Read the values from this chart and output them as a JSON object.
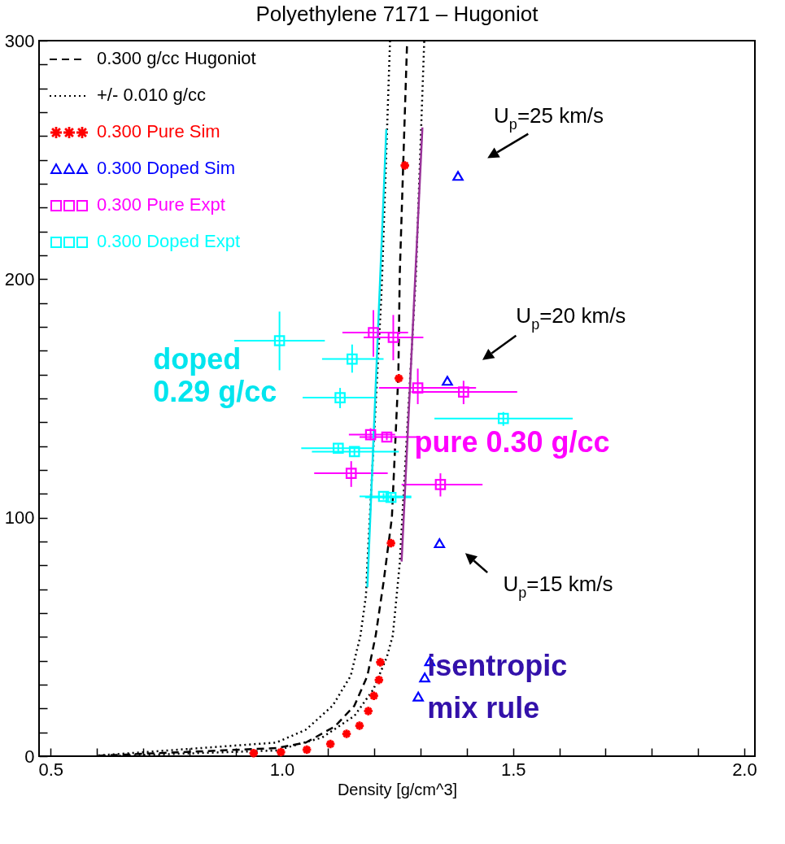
{
  "chart_data": {
    "type": "scatter",
    "title": "Polyethylene 7171 – Hugoniot",
    "xlabel": "Density [g/cm^3]",
    "xlim": [
      0.475,
      2.023
    ],
    "ylim": [
      0,
      300
    ],
    "xticks": [
      0.5,
      {
        "value": 0.6,
        "label": null
      },
      {
        "value": 0.7,
        "label": null
      },
      {
        "value": 0.8,
        "label": null
      },
      {
        "value": 0.9,
        "label": null
      },
      {
        "value": 1.0,
        "label": "1.0"
      },
      {
        "value": 1.1,
        "label": null
      },
      {
        "value": 1.2,
        "label": null
      },
      {
        "value": 1.3,
        "label": null
      },
      {
        "value": 1.4,
        "label": null
      },
      1.5,
      {
        "value": 1.6,
        "label": null
      },
      {
        "value": 1.7,
        "label": null
      },
      {
        "value": 1.8,
        "label": null
      },
      {
        "value": 1.9,
        "label": null
      },
      {
        "value": 2.0,
        "label": "2.0"
      }
    ],
    "yticks": [
      0,
      {
        "value": 10,
        "label": null
      },
      {
        "value": 20,
        "label": null
      },
      {
        "value": 30,
        "label": null
      },
      {
        "value": 40,
        "label": null
      },
      {
        "value": 50,
        "label": null
      },
      {
        "value": 60,
        "label": null
      },
      {
        "value": 70,
        "label": null
      },
      {
        "value": 80,
        "label": null
      },
      {
        "value": 90,
        "label": null
      },
      100,
      {
        "value": 110,
        "label": null
      },
      {
        "value": 120,
        "label": null
      },
      {
        "value": 130,
        "label": null
      },
      {
        "value": 140,
        "label": null
      },
      {
        "value": 150,
        "label": null
      },
      {
        "value": 160,
        "label": null
      },
      {
        "value": 170,
        "label": null
      },
      {
        "value": 180,
        "label": null
      },
      {
        "value": 190,
        "label": null
      },
      200,
      {
        "value": 210,
        "label": null
      },
      {
        "value": 220,
        "label": null
      },
      {
        "value": 230,
        "label": null
      },
      {
        "value": 240,
        "label": null
      },
      {
        "value": 250,
        "label": null
      },
      {
        "value": 260,
        "label": null
      },
      {
        "value": 270,
        "label": null
      },
      {
        "value": 280,
        "label": null
      },
      {
        "value": 290,
        "label": null
      },
      300
    ],
    "grid": false,
    "legend": "top left",
    "series": [
      {
        "name": "0.300 g/cc Hugoniot",
        "type": "line",
        "line_style": "dashed",
        "color": "#000000",
        "x": [
          0.603,
          0.988,
          1.052,
          1.115,
          1.157,
          1.185,
          1.203,
          1.22,
          1.238,
          1.252,
          1.255,
          1.266,
          1.271
        ],
        "values": [
          0.2,
          3.4,
          5.7,
          12.5,
          21.2,
          33.7,
          50.6,
          73,
          100,
          160,
          202,
          269.6,
          300
        ]
      },
      {
        "name": "+/- 0.010 g/cc",
        "type": "line",
        "line_style": "dotted",
        "color": "#000000",
        "x": [
          0.603,
          0.988,
          1.052,
          1.11,
          1.149,
          1.17,
          1.182,
          1.185,
          1.215,
          1.217,
          1.234
        ],
        "values": [
          0.3,
          5.7,
          11.1,
          21.2,
          33.7,
          50.6,
          67.4,
          80.9,
          192,
          202,
          300
        ]
      },
      {
        "type": "line",
        "line_style": "dotted",
        "color": "#000000",
        "x": [
          0.638,
          0.988,
          1.087,
          1.157,
          1.198,
          1.227,
          1.24,
          1.255,
          1.29,
          1.308
        ],
        "values": [
          0.1,
          2.4,
          7.8,
          16.9,
          28,
          41.5,
          50.6,
          80.9,
          202,
          300
        ]
      },
      {
        "name": "0.300 Pure Sim",
        "type": "scatter",
        "marker": "cross",
        "color": "#ff0000",
        "x": [
          0.939,
          0.998,
          1.054,
          1.105,
          1.14,
          1.168,
          1.187,
          1.199,
          1.21,
          1.213,
          1.236,
          1.253,
          1.266
        ],
        "values": [
          1.3,
          1.7,
          2.7,
          5.1,
          9.4,
          12.8,
          18.9,
          25.3,
          32,
          39.4,
          89.3,
          158.4,
          247.7
        ]
      },
      {
        "name": "0.300 Doped Sim",
        "type": "scatter",
        "marker": "triangle",
        "color": "#0000ff",
        "x": [
          1.295,
          1.309,
          1.32,
          1.341,
          1.358,
          1.381
        ],
        "values": [
          25,
          33,
          39.8,
          89.3,
          157.4,
          243.3
        ]
      },
      {
        "name": "0.300 Pure Expt",
        "type": "scatter",
        "marker": "square",
        "color": "#ff00ff",
        "x": [
          1.198,
          1.241,
          1.294,
          1.393,
          1.192,
          1.227,
          1.15,
          1.343
        ],
        "values": [
          177.6,
          175.6,
          154.4,
          152.7,
          134.8,
          133.8,
          118.6,
          113.9
        ],
        "xerrors": [
          [
            1.131,
            1.273
          ],
          [
            1.177,
            1.306
          ],
          [
            1.21,
            1.42
          ],
          [
            1.28,
            1.509
          ],
          [
            1.145,
            1.245
          ],
          [
            1.168,
            1.294
          ],
          [
            1.07,
            1.229
          ],
          [
            1.259,
            1.434
          ]
        ],
        "errors": [
          [
            167.5,
            187
          ],
          [
            166,
            185
          ],
          [
            147.6,
            162.5
          ],
          [
            147.6,
            157.4
          ],
          [
            132.5,
            137.5
          ],
          [
            132.5,
            135.5
          ],
          [
            112.9,
            123.7
          ],
          [
            108.9,
            118.6
          ]
        ]
      },
      {
        "name": "0.300 Doped Expt",
        "type": "scatter",
        "marker": "square",
        "color": "#00ffff",
        "x": [
          0.995,
          1.152,
          1.126,
          1.479,
          1.122,
          1.157,
          1.22,
          1.236
        ],
        "values": [
          174.2,
          166.5,
          150.3,
          141.6,
          129.1,
          127.7,
          108.9,
          108.5
        ],
        "xerrors": [
          [
            0.897,
            1.093
          ],
          [
            1.087,
            1.22
          ],
          [
            1.045,
            1.201
          ],
          [
            1.33,
            1.629
          ],
          [
            1.042,
            1.198
          ],
          [
            1.065,
            1.253
          ],
          [
            1.168,
            1.28
          ],
          [
            1.18,
            1.28
          ]
        ],
        "errors": [
          [
            161.8,
            186.4
          ],
          [
            160.8,
            172.6
          ],
          [
            145.9,
            154.4
          ],
          [
            138.5,
            144.3
          ],
          [
            127.5,
            130.7
          ],
          [
            126,
            129.4
          ],
          [
            107.5,
            110.3
          ],
          [
            107,
            110
          ]
        ]
      },
      {
        "type": "line",
        "line_style": "solid",
        "color": "#00e5ee",
        "x": [
          1.185,
          1.226
        ],
        "values": [
          70.8,
          262.9
        ]
      },
      {
        "type": "line",
        "line_style": "solid",
        "color": "#993399",
        "x": [
          1.259,
          1.304
        ],
        "values": [
          81.6,
          263.6
        ]
      }
    ],
    "annotations": [
      "U$_{p}$=25 km/s",
      "U$_{p}$=20 km/s",
      "U$_{p}$=15 km/s",
      "doped\n0.29 g/cc",
      "pure 0.30 g/cc",
      "isentropic\nmix rule"
    ]
  }
}
